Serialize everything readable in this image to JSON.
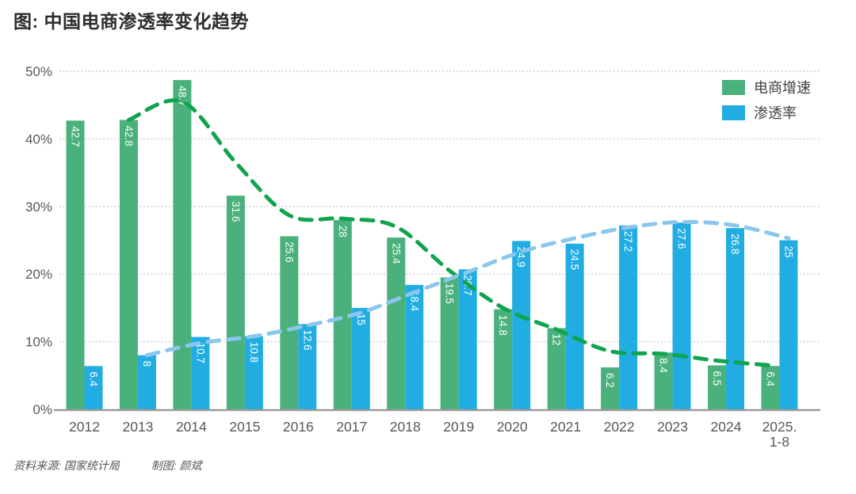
{
  "chart_data": {
    "type": "bar",
    "title": "图: 中国电商渗透率变化趋势",
    "categories": [
      "2012",
      "2013",
      "2014",
      "2015",
      "2016",
      "2017",
      "2018",
      "2019",
      "2020",
      "2021",
      "2022",
      "2023",
      "2024",
      "2025.|1-8"
    ],
    "y_ticks": [
      {
        "v": 0,
        "label": "0%"
      },
      {
        "v": 10,
        "label": "10%"
      },
      {
        "v": 20,
        "label": "20%"
      },
      {
        "v": 30,
        "label": "30%"
      },
      {
        "v": 40,
        "label": "40%"
      },
      {
        "v": 50,
        "label": "50%"
      }
    ],
    "ylim": [
      0,
      50
    ],
    "grid": "horizontal-dotted",
    "legend_position": "top-right",
    "series": [
      {
        "name": "电商增速",
        "color": "#4bb17c",
        "values": [
          42.7,
          42.8,
          48.7,
          31.6,
          25.6,
          28,
          25.4,
          19.5,
          14.8,
          12,
          6.2,
          8.4,
          6.5,
          6.4
        ]
      },
      {
        "name": "渗透率",
        "color": "#22ade2",
        "values": [
          6.4,
          8,
          10.7,
          10.8,
          12.6,
          15,
          18.4,
          20.7,
          24.9,
          24.5,
          27.2,
          27.6,
          26.8,
          25
        ]
      }
    ],
    "trendlines": [
      {
        "series": "电商增速",
        "style": "dashed",
        "color": "#0fa44d",
        "values": [
          null,
          42.8,
          45.5,
          36.5,
          28.7,
          28.2,
          27,
          20.5,
          15,
          11.8,
          8.6,
          8.2,
          7.2,
          6.5
        ]
      },
      {
        "series": "渗透率",
        "style": "dashed",
        "color": "#8bc6ec",
        "values": [
          null,
          8,
          9.8,
          10.8,
          12.4,
          14.3,
          17.3,
          20.3,
          23.3,
          25.3,
          26.9,
          27.7,
          27.2,
          25.3
        ]
      }
    ],
    "value_label_color": "#ffffff",
    "axis_text_color": "#57585a"
  },
  "footer": {
    "source": "资料来源: 国家统计局",
    "credit": "制图: 颜斌"
  }
}
